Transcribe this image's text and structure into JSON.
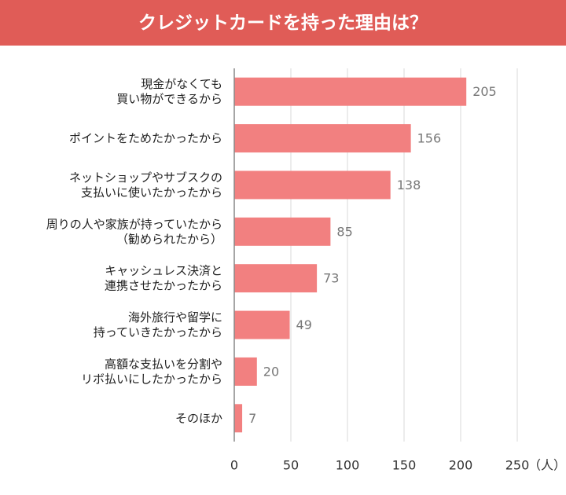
{
  "chart_data": {
    "type": "barh",
    "title": "クレジットカードを持った理由は？",
    "categories": [
      "現金がなくても\n買い物ができるから",
      "ポイントをためたかったから",
      "ネットショップやサブスクの\n支払いに使いたかったから",
      "周りの人や家族が持っていたから\n（勧められたから）",
      "キャッシュレス決済と\n連携させたかったから",
      "海外旅行や留学に\n持っていきたかったから",
      "高額な支払いを分割や\nリボ払いにしたかったから",
      "そのほか"
    ],
    "values": [
      205,
      156,
      138,
      85,
      73,
      49,
      20,
      7
    ],
    "color": "#f28080",
    "xlim": [
      0,
      250
    ],
    "xticks": [
      0,
      50,
      100,
      150,
      200,
      250
    ],
    "x_unit": "（人）",
    "grid": true
  }
}
